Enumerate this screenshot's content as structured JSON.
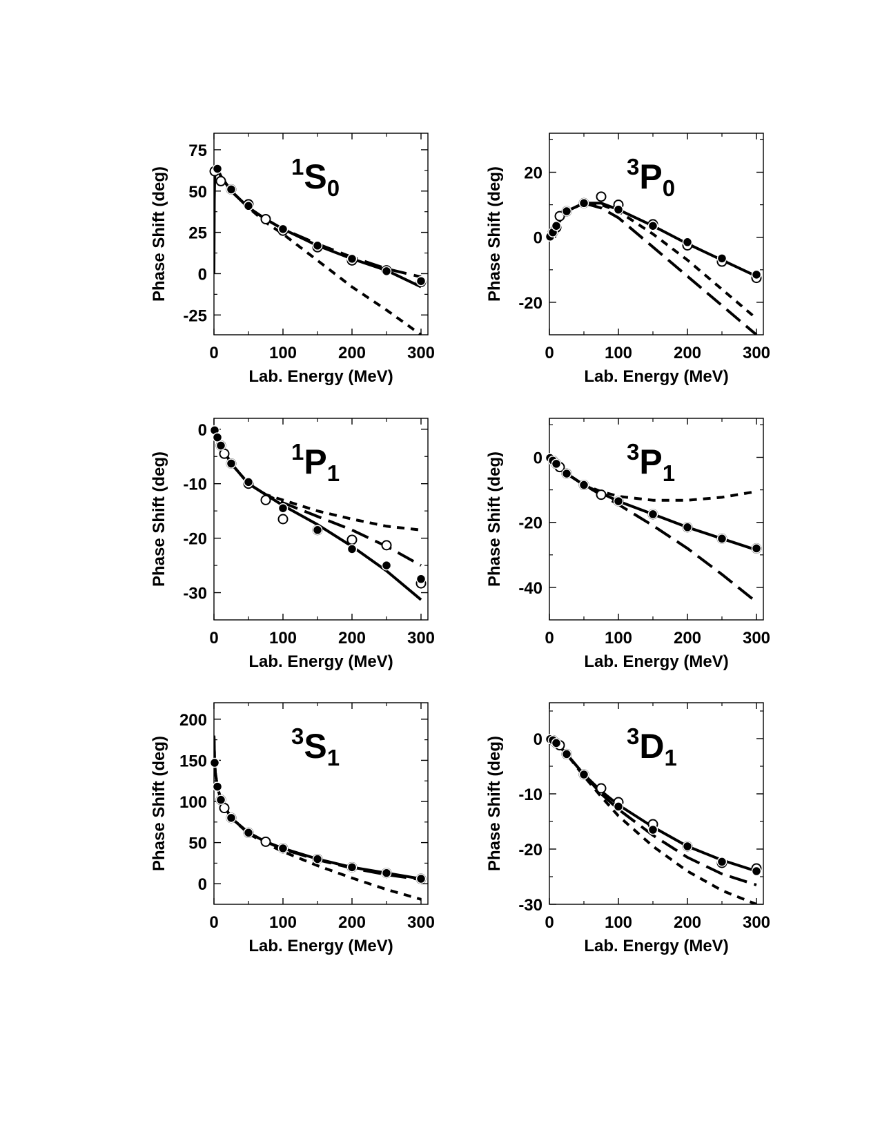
{
  "chart_data": [
    {
      "type": "line",
      "title": {
        "sup": "1",
        "main": "S",
        "sub": "0"
      },
      "xlabel": "Lab. Energy (MeV)",
      "ylabel": "Phase Shift (deg)",
      "xlim": [
        0,
        310
      ],
      "ylim": [
        -37,
        85
      ],
      "xticks": [
        0,
        100,
        200,
        300
      ],
      "yticks": [
        -25,
        0,
        25,
        50,
        75
      ],
      "series": [
        {
          "style": "solid",
          "x": [
            0,
            0.5,
            1,
            1.5,
            2,
            3,
            5,
            10,
            25,
            50,
            75,
            100,
            150,
            200,
            250,
            300
          ],
          "y": [
            0,
            45,
            56,
            60,
            62,
            63,
            63.5,
            59,
            50,
            40,
            33,
            27,
            17,
            9,
            2,
            -8
          ]
        },
        {
          "style": "long-dash",
          "x": [
            5,
            10,
            25,
            50,
            75,
            100,
            150,
            200,
            250,
            300
          ],
          "y": [
            63.5,
            59,
            50,
            40,
            33,
            27,
            18,
            10,
            3,
            -2
          ]
        },
        {
          "style": "short-dash",
          "x": [
            5,
            10,
            25,
            50,
            75,
            100,
            150,
            200,
            250,
            300
          ],
          "y": [
            63.5,
            59,
            50,
            40,
            31,
            24,
            8,
            -8,
            -22,
            -37
          ]
        }
      ],
      "points_filled": {
        "x": [
          5,
          25,
          50,
          100,
          150,
          200,
          250,
          300
        ],
        "y": [
          63.5,
          51,
          41,
          27,
          17,
          9,
          1.5,
          -4.5
        ]
      },
      "points_open": {
        "x": [
          1,
          10,
          25,
          50,
          75,
          100,
          150,
          200,
          250,
          300
        ],
        "y": [
          62,
          56,
          51,
          42,
          33,
          26,
          16,
          8,
          2,
          -5
        ]
      }
    },
    {
      "type": "line",
      "title": {
        "sup": "3",
        "main": "P",
        "sub": "0"
      },
      "xlabel": "Lab. Energy (MeV)",
      "ylabel": "Phase Shift (deg)",
      "xlim": [
        0,
        310
      ],
      "ylim": [
        -30,
        32
      ],
      "xticks": [
        0,
        100,
        200,
        300
      ],
      "yticks": [
        -20,
        0,
        20
      ],
      "series": [
        {
          "style": "solid",
          "x": [
            0,
            5,
            10,
            25,
            50,
            75,
            100,
            150,
            200,
            250,
            300
          ],
          "y": [
            0,
            1.5,
            3.5,
            8,
            10.5,
            10.5,
            8.5,
            3.5,
            -2,
            -7,
            -12
          ]
        },
        {
          "style": "long-dash",
          "x": [
            0,
            5,
            10,
            25,
            50,
            75,
            100,
            150,
            200,
            250,
            300
          ],
          "y": [
            0,
            1.5,
            3.5,
            8,
            10.5,
            9,
            6,
            -3,
            -12,
            -21,
            -30
          ]
        },
        {
          "style": "short-dash",
          "x": [
            0,
            5,
            10,
            25,
            50,
            75,
            100,
            150,
            200,
            250,
            300
          ],
          "y": [
            0,
            1.5,
            3.5,
            8,
            10.5,
            10,
            8,
            1,
            -7,
            -16,
            -25
          ]
        }
      ],
      "points_filled": {
        "x": [
          1,
          5,
          10,
          25,
          50,
          100,
          150,
          200,
          250,
          300
        ],
        "y": [
          0.2,
          1.5,
          3.5,
          8,
          10.5,
          8.5,
          3.5,
          -1.5,
          -6.5,
          -11.5
        ]
      },
      "points_open": {
        "x": [
          5,
          10,
          15,
          25,
          50,
          75,
          100,
          150,
          200,
          250,
          300
        ],
        "y": [
          1.5,
          3,
          6.5,
          8,
          10.5,
          12.5,
          10,
          4,
          -2.5,
          -7.5,
          -12.5
        ]
      }
    },
    {
      "type": "line",
      "title": {
        "sup": "1",
        "main": "P",
        "sub": "1"
      },
      "xlabel": "Lab. Energy (MeV)",
      "ylabel": "Phase Shift (deg)",
      "xlim": [
        0,
        310
      ],
      "ylim": [
        -35,
        2
      ],
      "xticks": [
        0,
        100,
        200,
        300
      ],
      "yticks": [
        -30,
        -20,
        -10,
        0
      ],
      "series": [
        {
          "style": "solid",
          "x": [
            0,
            5,
            10,
            25,
            50,
            75,
            100,
            150,
            200,
            250,
            300
          ],
          "y": [
            0,
            -1.5,
            -3,
            -6.3,
            -10,
            -12,
            -14,
            -17.5,
            -21.5,
            -26,
            -31.3
          ]
        },
        {
          "style": "long-dash",
          "x": [
            0,
            5,
            10,
            25,
            50,
            75,
            100,
            150,
            200,
            250,
            300
          ],
          "y": [
            0,
            -1.5,
            -3,
            -6.3,
            -10,
            -12,
            -13.5,
            -16,
            -18.5,
            -21.5,
            -25
          ]
        },
        {
          "style": "short-dash",
          "x": [
            0,
            5,
            10,
            25,
            50,
            75,
            100,
            150,
            200,
            250,
            300
          ],
          "y": [
            0,
            -1.5,
            -3,
            -6.3,
            -10,
            -12,
            -13,
            -15,
            -16.5,
            -17.8,
            -18.5
          ]
        }
      ],
      "points_filled": {
        "x": [
          1,
          5,
          10,
          25,
          50,
          100,
          150,
          200,
          250,
          300
        ],
        "y": [
          -0.2,
          -1.5,
          -3,
          -6.3,
          -9.7,
          -14.5,
          -18.5,
          -22,
          -25,
          -27.5
        ]
      },
      "points_open": {
        "x": [
          10,
          15,
          25,
          50,
          75,
          100,
          150,
          200,
          250,
          300
        ],
        "y": [
          -3,
          -4.5,
          -6.3,
          -10,
          -13,
          -16.5,
          -18.5,
          -20.3,
          -21.3,
          -28.3
        ]
      }
    },
    {
      "type": "line",
      "title": {
        "sup": "3",
        "main": "P",
        "sub": "1"
      },
      "xlabel": "Lab. Energy (MeV)",
      "ylabel": "Phase Shift (deg)",
      "xlim": [
        0,
        310
      ],
      "ylim": [
        -50,
        12
      ],
      "xticks": [
        0,
        100,
        200,
        300
      ],
      "yticks": [
        -40,
        -20,
        0
      ],
      "series": [
        {
          "style": "solid",
          "x": [
            0,
            5,
            10,
            25,
            50,
            75,
            100,
            150,
            200,
            250,
            300
          ],
          "y": [
            0,
            -1,
            -2,
            -5,
            -8.5,
            -11,
            -13.5,
            -17.5,
            -21.5,
            -25,
            -28.5
          ]
        },
        {
          "style": "long-dash",
          "x": [
            0,
            5,
            10,
            25,
            50,
            75,
            100,
            150,
            200,
            250,
            300
          ],
          "y": [
            0,
            -1,
            -2,
            -5,
            -8.5,
            -11.5,
            -14.5,
            -21,
            -28,
            -36,
            -44.5
          ]
        },
        {
          "style": "short-dash",
          "x": [
            0,
            5,
            10,
            25,
            50,
            75,
            100,
            150,
            200,
            250,
            300
          ],
          "y": [
            0,
            -1,
            -2,
            -5,
            -8.5,
            -10.5,
            -12,
            -13.2,
            -13.2,
            -12.3,
            -10.5
          ]
        }
      ],
      "points_filled": {
        "x": [
          1,
          5,
          10,
          25,
          50,
          100,
          150,
          200,
          250,
          300
        ],
        "y": [
          -0.2,
          -1,
          -2,
          -5,
          -8.5,
          -13.5,
          -17.5,
          -21.5,
          -25,
          -28
        ]
      },
      "points_open": {
        "x": [
          5,
          10,
          15,
          25,
          50,
          75,
          100,
          150,
          200,
          250,
          300
        ],
        "y": [
          -1,
          -2,
          -3,
          -5,
          -8.5,
          -11.5,
          -13.5,
          -17.5,
          -21.5,
          -25,
          -28
        ]
      }
    },
    {
      "type": "line",
      "title": {
        "sup": "3",
        "main": "S",
        "sub": "1"
      },
      "xlabel": "Lab. Energy (MeV)",
      "ylabel": "Phase Shift (deg)",
      "xlim": [
        0,
        310
      ],
      "ylim": [
        -25,
        220
      ],
      "xticks": [
        0,
        100,
        200,
        300
      ],
      "yticks": [
        0,
        50,
        100,
        150,
        200
      ],
      "series": [
        {
          "style": "solid",
          "x": [
            0,
            1,
            2,
            5,
            10,
            25,
            50,
            75,
            100,
            150,
            200,
            250,
            300
          ],
          "y": [
            180,
            147,
            135,
            118,
            102,
            80,
            62,
            51,
            43,
            30,
            20,
            13,
            6
          ]
        },
        {
          "style": "long-dash",
          "x": [
            0,
            1,
            2,
            5,
            10,
            25,
            50,
            75,
            100,
            150,
            200,
            250,
            300
          ],
          "y": [
            180,
            147,
            135,
            118,
            102,
            80,
            62,
            51,
            42,
            29,
            19,
            11,
            5
          ]
        },
        {
          "style": "short-dash",
          "x": [
            0,
            1,
            2,
            5,
            10,
            25,
            50,
            75,
            100,
            150,
            200,
            250,
            300
          ],
          "y": [
            180,
            147,
            135,
            118,
            102,
            80,
            61,
            49,
            39,
            22,
            7,
            -7,
            -19
          ]
        }
      ],
      "points_filled": {
        "x": [
          1,
          5,
          10,
          25,
          50,
          100,
          150,
          200,
          250,
          300
        ],
        "y": [
          147,
          118,
          102,
          80,
          62,
          43,
          30,
          20,
          13,
          6
        ]
      },
      "points_open": {
        "x": [
          10,
          15,
          25,
          50,
          75,
          100,
          150,
          200,
          250,
          300
        ],
        "y": [
          102,
          92,
          80,
          62,
          51,
          43,
          30,
          20,
          13,
          6
        ]
      }
    },
    {
      "type": "line",
      "title": {
        "sup": "3",
        "main": "D",
        "sub": "1"
      },
      "xlabel": "Lab. Energy (MeV)",
      "ylabel": "Phase Shift (deg)",
      "xlim": [
        0,
        310
      ],
      "ylim": [
        -30,
        6.5
      ],
      "xticks": [
        0,
        100,
        200,
        300
      ],
      "yticks": [
        -30,
        -20,
        -10,
        0
      ],
      "series": [
        {
          "style": "solid",
          "x": [
            0,
            5,
            10,
            25,
            50,
            75,
            100,
            150,
            200,
            250,
            300
          ],
          "y": [
            0,
            -0.3,
            -0.8,
            -2.8,
            -6.5,
            -9.5,
            -12,
            -16,
            -19.5,
            -22,
            -24
          ]
        },
        {
          "style": "long-dash",
          "x": [
            0,
            5,
            10,
            25,
            50,
            75,
            100,
            150,
            200,
            250,
            300
          ],
          "y": [
            0,
            -0.3,
            -0.8,
            -2.8,
            -6.5,
            -10,
            -12.8,
            -17.5,
            -21.5,
            -24.5,
            -26.5
          ]
        },
        {
          "style": "short-dash",
          "x": [
            0,
            5,
            10,
            25,
            50,
            75,
            100,
            150,
            200,
            250,
            300
          ],
          "y": [
            0,
            -0.3,
            -0.8,
            -2.8,
            -6.8,
            -10.5,
            -14,
            -19.5,
            -24,
            -27.5,
            -30
          ]
        }
      ],
      "points_filled": {
        "x": [
          1,
          5,
          10,
          25,
          50,
          100,
          150,
          200,
          250,
          300
        ],
        "y": [
          -0.1,
          -0.3,
          -0.8,
          -2.8,
          -6.5,
          -12.3,
          -16.5,
          -19.5,
          -22.3,
          -24
        ]
      },
      "points_open": {
        "x": [
          5,
          10,
          15,
          25,
          50,
          75,
          100,
          150,
          200,
          250,
          300
        ],
        "y": [
          -0.3,
          -0.8,
          -1.2,
          -2.8,
          -6.5,
          -9,
          -11.5,
          -15.5,
          -19.5,
          -22.5,
          -23.5
        ]
      }
    }
  ]
}
